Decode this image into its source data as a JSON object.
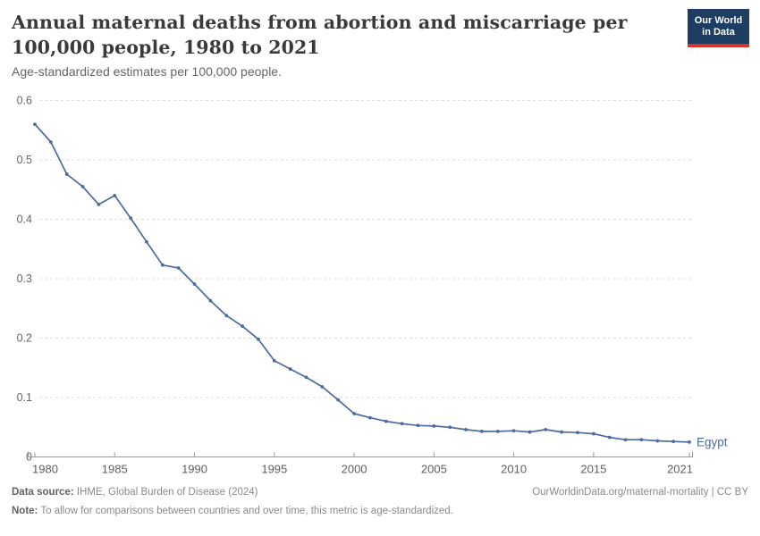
{
  "header": {
    "title": "Annual maternal deaths from abortion and miscarriage per 100,000 people, 1980 to 2021",
    "subtitle": "Age-standardized estimates per 100,000 people.",
    "logo": {
      "line1": "Our World",
      "line2": "in Data"
    }
  },
  "chart_data": {
    "type": "line",
    "title": "Annual maternal deaths from abortion and miscarriage per 100,000 people, 1980 to 2021",
    "xlabel": "",
    "ylabel": "Age-standardized estimates per 100,000 people",
    "xlim": [
      1980,
      2021
    ],
    "ylim": [
      0,
      0.6
    ],
    "x_ticks": [
      1980,
      1985,
      1990,
      1995,
      2000,
      2005,
      2010,
      2015,
      2021
    ],
    "y_ticks": [
      0,
      0.1,
      0.2,
      0.3,
      0.4,
      0.5,
      0.6
    ],
    "grid": "horizontal-dashed",
    "legend_position": "end-of-line-label",
    "series": [
      {
        "name": "Egypt",
        "color": "#4C6B9E",
        "x": [
          1980,
          1981,
          1982,
          1983,
          1984,
          1985,
          1986,
          1987,
          1988,
          1989,
          1990,
          1991,
          1992,
          1993,
          1994,
          1995,
          1996,
          1997,
          1998,
          1999,
          2000,
          2001,
          2002,
          2003,
          2004,
          2005,
          2006,
          2007,
          2008,
          2009,
          2010,
          2011,
          2012,
          2013,
          2014,
          2015,
          2016,
          2017,
          2018,
          2019,
          2020,
          2021
        ],
        "values": [
          0.56,
          0.53,
          0.476,
          0.455,
          0.425,
          0.44,
          0.402,
          0.362,
          0.323,
          0.318,
          0.291,
          0.263,
          0.238,
          0.22,
          0.198,
          0.162,
          0.148,
          0.134,
          0.118,
          0.096,
          0.073,
          0.066,
          0.06,
          0.056,
          0.053,
          0.052,
          0.05,
          0.046,
          0.043,
          0.043,
          0.044,
          0.042,
          0.046,
          0.042,
          0.041,
          0.039,
          0.033,
          0.029,
          0.029,
          0.027,
          0.026,
          0.025
        ]
      }
    ]
  },
  "footer": {
    "datasource_label": "Data source:",
    "datasource_value": " IHME, Global Burden of Disease (2024)",
    "link": "OurWorldinData.org/maternal-mortality | CC BY",
    "note_label": "Note:",
    "note_value": " To allow for comparisons between countries and over time, this metric is age-standardized."
  },
  "colors": {
    "line": "#4C6B9E",
    "logo_navy": "#1D3D63",
    "logo_red": "#D8352A",
    "grid": "#dedede",
    "axis": "#999999",
    "tick_label": "#666666"
  }
}
